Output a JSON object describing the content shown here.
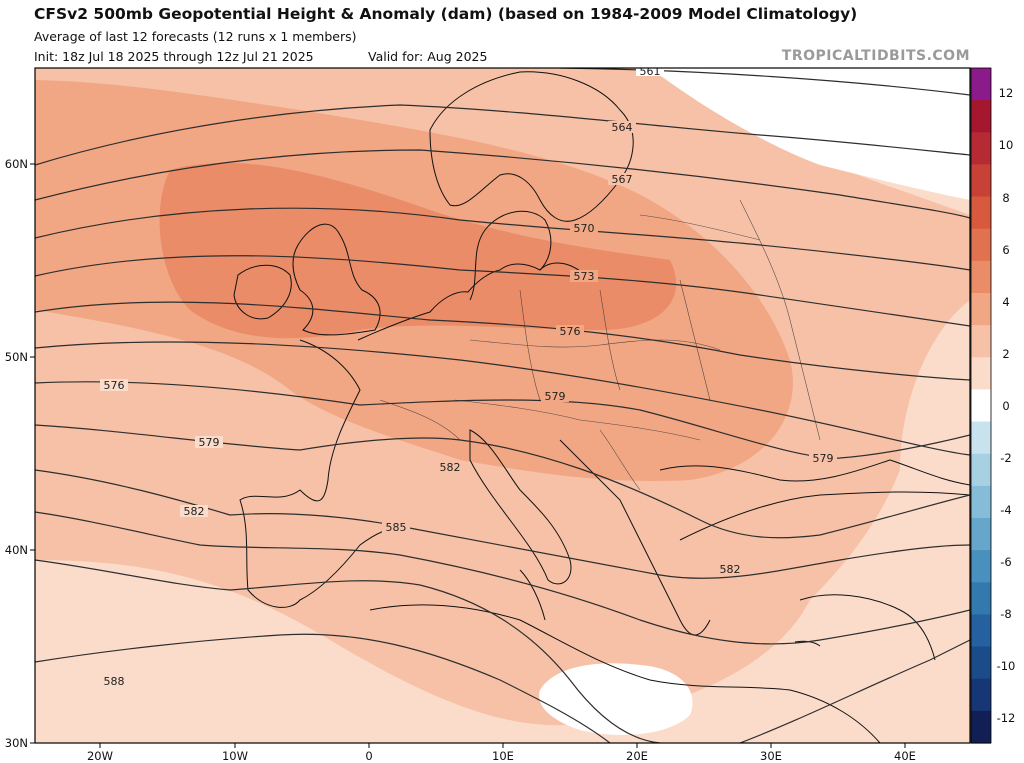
{
  "header": {
    "title": "CFSv2 500mb Geopotential Height & Anomaly (dam) (based on 1984-2009 Model Climatology)",
    "subtitle": "Average of last 12 forecasts (12 runs x 1 members)",
    "init": "Init: 18z Jul 18 2025 through 12z Jul 21 2025",
    "valid": "Valid for: Aug 2025",
    "credit": "TROPICALTIDBITS.COM"
  },
  "map": {
    "lat_labels": [
      "60N",
      "50N",
      "40N",
      "30N"
    ],
    "lon_labels": [
      "20W",
      "10W",
      "0",
      "10E",
      "20E",
      "30E",
      "40E"
    ],
    "contour_labels": [
      "561",
      "564",
      "567",
      "570",
      "573",
      "576",
      "576",
      "579",
      "579",
      "579",
      "582",
      "582",
      "582",
      "585",
      "588"
    ]
  },
  "colorbar": {
    "ticks": [
      "12",
      "10",
      "8",
      "6",
      "4",
      "2",
      "0",
      "-2",
      "-4",
      "-6",
      "-8",
      "-10",
      "-12"
    ],
    "colors": [
      "#8b1a8b",
      "#a5172f",
      "#b62a34",
      "#c84136",
      "#d75a3e",
      "#e1724f",
      "#ea8c68",
      "#f1a684",
      "#f6c1a6",
      "#fbdccb",
      "#ffffff",
      "#c8e3ee",
      "#a7d0e3",
      "#86bcd8",
      "#65a6ca",
      "#4890bd",
      "#3279ae",
      "#24619e",
      "#1c4b8a",
      "#173676",
      "#121f55"
    ]
  }
}
